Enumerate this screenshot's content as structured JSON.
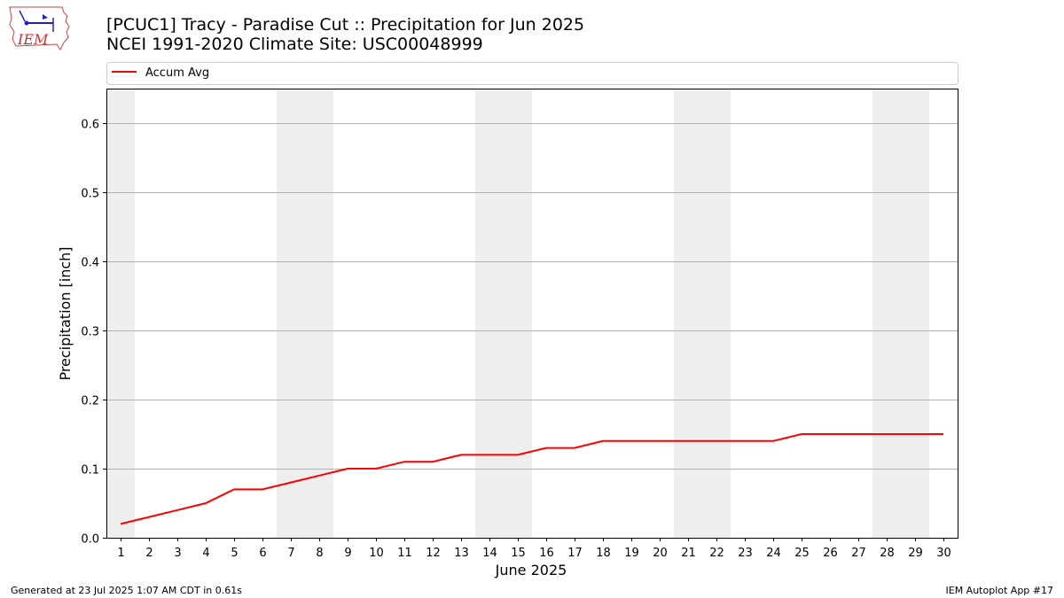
{
  "header": {
    "title_line1": "[PCUC1] Tracy - Paradise Cut :: Precipitation for Jun 2025",
    "title_line2": "NCEI 1991-2020 Climate Site: USC00048999",
    "logo_text": "IEM"
  },
  "footer": {
    "generated": "Generated at 23 Jul 2025 1:07 AM CDT in 0.61s",
    "app": "IEM Autoplot App #17"
  },
  "chart_data": {
    "type": "line",
    "title": "",
    "xlabel": "June 2025",
    "ylabel": "Precipitation [inch]",
    "x": [
      1,
      2,
      3,
      4,
      5,
      6,
      7,
      8,
      9,
      10,
      11,
      12,
      13,
      14,
      15,
      16,
      17,
      18,
      19,
      20,
      21,
      22,
      23,
      24,
      25,
      26,
      27,
      28,
      29,
      30
    ],
    "xlim": [
      0.5,
      30.5
    ],
    "ylim": [
      0,
      0.65
    ],
    "yticks": [
      0.0,
      0.1,
      0.2,
      0.3,
      0.4,
      0.5,
      0.6
    ],
    "ytick_labels": [
      "0.0",
      "0.1",
      "0.2",
      "0.3",
      "0.4",
      "0.5",
      "0.6"
    ],
    "grid": "horizontal",
    "legend_placement": "top",
    "weekend_shading": [
      [
        1,
        1
      ],
      [
        7,
        8
      ],
      [
        14,
        15
      ],
      [
        21,
        22
      ],
      [
        28,
        29
      ]
    ],
    "series": [
      {
        "name": "Accum Avg",
        "color": "#ff0000",
        "values": [
          0.02,
          0.03,
          0.04,
          0.05,
          0.07,
          0.07,
          0.08,
          0.09,
          0.1,
          0.1,
          0.11,
          0.11,
          0.12,
          0.12,
          0.12,
          0.13,
          0.13,
          0.14,
          0.14,
          0.14,
          0.14,
          0.14,
          0.14,
          0.14,
          0.15,
          0.15,
          0.15,
          0.15,
          0.15,
          0.15
        ]
      }
    ]
  }
}
